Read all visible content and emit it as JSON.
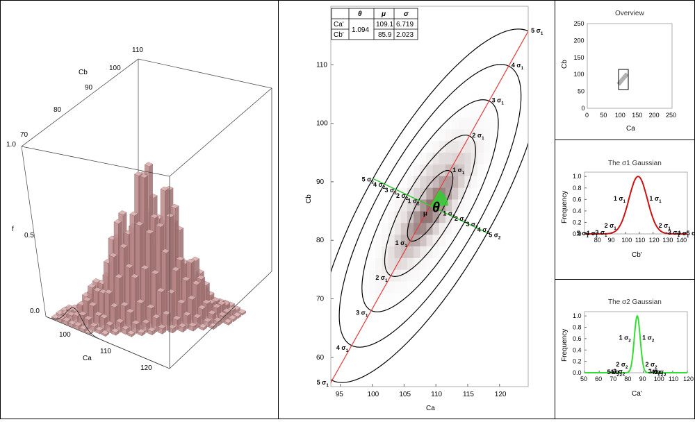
{
  "panel3d": {
    "axes": {
      "cb": {
        "label": "Cb",
        "ticks": [
          "70",
          "80",
          "90",
          "100",
          "110"
        ]
      },
      "ca": {
        "label": "Ca",
        "ticks": [
          "100",
          "110",
          "120"
        ]
      },
      "f": {
        "label": "f",
        "ticks": [
          "0.0",
          "0.5",
          "1.0"
        ]
      }
    },
    "colors": {
      "bar": "#b88787",
      "surface": "#9c6b6b"
    }
  },
  "main": {
    "table": {
      "headers": [
        "",
        "θ",
        "μ",
        "σ"
      ],
      "rows": [
        {
          "name": "Ca'",
          "theta": "1.094",
          "mu": "109.1",
          "sigma": "6.719"
        },
        {
          "name": "Cb'",
          "theta": "1.094",
          "mu": "85.9",
          "sigma": "2.023"
        }
      ]
    },
    "theta_label": "θ",
    "mu_label": "μ",
    "sigma1_labels": [
      "1σ1",
      "2σ1",
      "3σ1",
      "4σ1",
      "5σ1"
    ],
    "sigma2_labels": [
      "1σ2",
      "2σ2",
      "3σ2",
      "4σ2",
      "5σ2"
    ],
    "colors": {
      "major": "#e83a3a",
      "minor": "#33cc33",
      "ellipse": "#000000"
    }
  },
  "overview": {
    "title": "Overview",
    "xlabel": "Ca",
    "ylabel": "Cb",
    "ticks": [
      "0",
      "50",
      "100",
      "150",
      "200",
      "250"
    ]
  },
  "chart_data": [
    {
      "type": "heatmap",
      "xlabel": "Ca",
      "ylabel": "Cb",
      "xlim": [
        93.5,
        124.5
      ],
      "ylim": [
        55,
        120
      ],
      "xticks": [
        95,
        100,
        105,
        110,
        115,
        120
      ],
      "yticks": [
        60,
        70,
        80,
        90,
        100,
        110
      ],
      "mean": [
        109.1,
        85.9
      ],
      "theta": 1.094,
      "sigma": [
        6.719,
        2.023
      ],
      "ellipse_levels": [
        1,
        2,
        3,
        4,
        5
      ]
    },
    {
      "type": "line",
      "title": "The σ1 Gaussian",
      "xlabel": "Cb'",
      "ylabel": "Frequency",
      "xlim": [
        70,
        145
      ],
      "ylim": [
        0,
        1
      ],
      "xticks": [
        80,
        90,
        100,
        110,
        120,
        130,
        140
      ],
      "yticks": [
        "0.0",
        "0.2",
        "0.4",
        "0.6",
        "0.8",
        "1.0"
      ],
      "mu": 109.1,
      "sigma": 6.719,
      "color": "#cc1111"
    },
    {
      "type": "line",
      "title": "The σ2 Gaussian",
      "xlabel": "Ca'",
      "ylabel": "Frequency",
      "xlim": [
        50,
        120
      ],
      "ylim": [
        0,
        1
      ],
      "xticks": [
        50,
        60,
        70,
        80,
        90,
        100,
        110,
        120
      ],
      "yticks": [
        "0.0",
        "0.2",
        "0.4",
        "0.6",
        "0.8",
        "1.0"
      ],
      "mu": 85.9,
      "sigma": 2.023,
      "color": "#33dd33"
    }
  ]
}
